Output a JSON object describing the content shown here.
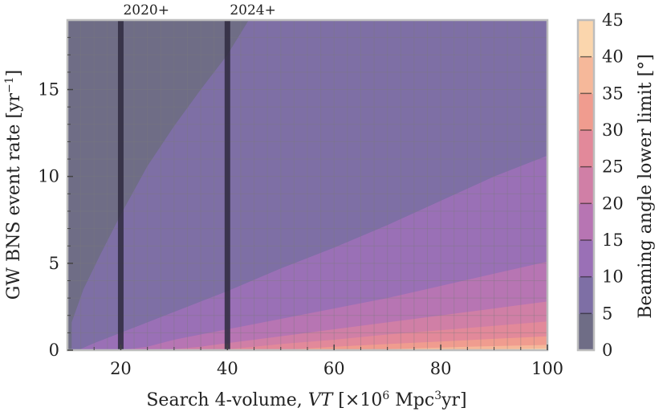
{
  "chart_data": {
    "type": "contour",
    "xlabel": "Search 4-volume, VT [×10⁶ Mpc³yr]",
    "ylabel": "GW BNS event rate [yr⁻¹]",
    "colorbar_label": "Beaming angle lower limit [°]",
    "xlim": [
      10,
      100
    ],
    "ylim": [
      0,
      19
    ],
    "xticks": [
      20,
      40,
      60,
      80,
      100
    ],
    "yticks": [
      0,
      5,
      10,
      15
    ],
    "colorbar_ticks": [
      0,
      5,
      10,
      15,
      20,
      25,
      30,
      35,
      40,
      45
    ],
    "levels": [
      0,
      5,
      10,
      15,
      20,
      25,
      30,
      35,
      40,
      45
    ],
    "level_colors": [
      "#6f6d86",
      "#7e6fa5",
      "#9a70b6",
      "#b775b3",
      "#d07fa6",
      "#e2899a",
      "#f09c8f",
      "#f6b89a",
      "#fbd6ad"
    ],
    "annotations": [
      {
        "text": "2020+",
        "x": 20
      },
      {
        "text": "2024+",
        "x": 40
      }
    ],
    "contour_lines": [
      {
        "level": 5,
        "points": [
          [
            10.8,
            1.6
          ],
          [
            13,
            3.5
          ],
          [
            16,
            5.4
          ],
          [
            20,
            7.8
          ],
          [
            25,
            10.6
          ],
          [
            30,
            12.9
          ],
          [
            35,
            15.0
          ],
          [
            40,
            17.0
          ],
          [
            44,
            19.0
          ]
        ]
      },
      {
        "level": 10,
        "points": [
          [
            12,
            0
          ],
          [
            15,
            0.4
          ],
          [
            20,
            1.0
          ],
          [
            30,
            2.2
          ],
          [
            40,
            3.4
          ],
          [
            50,
            4.7
          ],
          [
            60,
            5.9
          ],
          [
            70,
            7.2
          ],
          [
            80,
            8.6
          ],
          [
            90,
            10.0
          ],
          [
            100,
            11.2
          ]
        ]
      },
      {
        "level": 15,
        "points": [
          [
            20,
            0
          ],
          [
            25,
            0.2
          ],
          [
            30,
            0.6
          ],
          [
            40,
            1.2
          ],
          [
            50,
            1.8
          ],
          [
            60,
            2.4
          ],
          [
            70,
            3.0
          ],
          [
            80,
            3.7
          ],
          [
            90,
            4.4
          ],
          [
            100,
            5.1
          ]
        ]
      },
      {
        "level": 20,
        "points": [
          [
            28,
            0
          ],
          [
            35,
            0.2
          ],
          [
            40,
            0.4
          ],
          [
            50,
            0.8
          ],
          [
            60,
            1.2
          ],
          [
            70,
            1.6
          ],
          [
            80,
            2.0
          ],
          [
            90,
            2.4
          ],
          [
            100,
            2.8
          ]
        ]
      },
      {
        "level": 25,
        "points": [
          [
            38,
            0
          ],
          [
            45,
            0.2
          ],
          [
            50,
            0.35
          ],
          [
            60,
            0.6
          ],
          [
            70,
            0.9
          ],
          [
            80,
            1.15
          ],
          [
            90,
            1.4
          ],
          [
            100,
            1.65
          ]
        ]
      },
      {
        "level": 30,
        "points": [
          [
            50,
            0
          ],
          [
            60,
            0.2
          ],
          [
            70,
            0.35
          ],
          [
            80,
            0.5
          ],
          [
            90,
            0.65
          ],
          [
            100,
            0.8
          ]
        ]
      },
      {
        "level": 35,
        "points": [
          [
            65,
            0
          ],
          [
            75,
            0.1
          ],
          [
            85,
            0.2
          ],
          [
            100,
            0.3
          ]
        ]
      },
      {
        "level": 40,
        "points": [
          [
            80,
            0
          ],
          [
            90,
            0.05
          ],
          [
            100,
            0.1
          ]
        ]
      }
    ]
  }
}
